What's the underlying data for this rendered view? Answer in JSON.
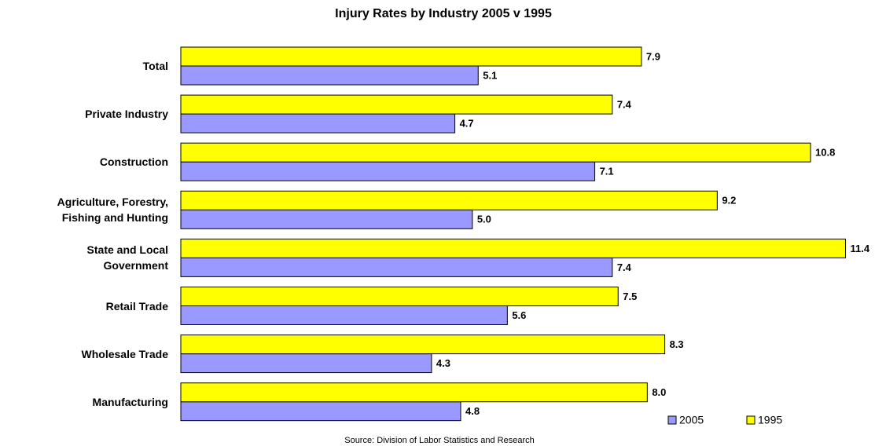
{
  "chart_data": {
    "type": "bar",
    "orientation": "horizontal",
    "title": "Injury Rates by Industry  2005 v 1995",
    "source": "Source: Division of Labor Statistics and Research",
    "categories": [
      "Total",
      "Private Industry",
      "Construction",
      "Agriculture, Forestry,\nFishing and Hunting",
      "State and Local\nGovernment ",
      "Retail Trade",
      "Wholesale Trade",
      "Manufacturing"
    ],
    "series": [
      {
        "name": "2005",
        "color": "#9999ff",
        "values": [
          5.1,
          4.7,
          7.1,
          5.0,
          7.4,
          5.6,
          4.3,
          4.8
        ],
        "value_labels": [
          "5.1",
          "4.7",
          "7.1",
          "5.0",
          "7.4",
          "5.6",
          "4.3",
          "4.8"
        ]
      },
      {
        "name": "1995",
        "color": "#ffff00",
        "values": [
          7.9,
          7.4,
          10.8,
          9.2,
          11.4,
          7.5,
          8.3,
          8.0
        ],
        "value_labels": [
          "7.9",
          "7.4",
          "10.8",
          "9.2",
          "11.4",
          "7.5",
          "8.3",
          "8.0"
        ]
      }
    ],
    "xlim": [
      0,
      12
    ],
    "legend": "bottom-right"
  }
}
